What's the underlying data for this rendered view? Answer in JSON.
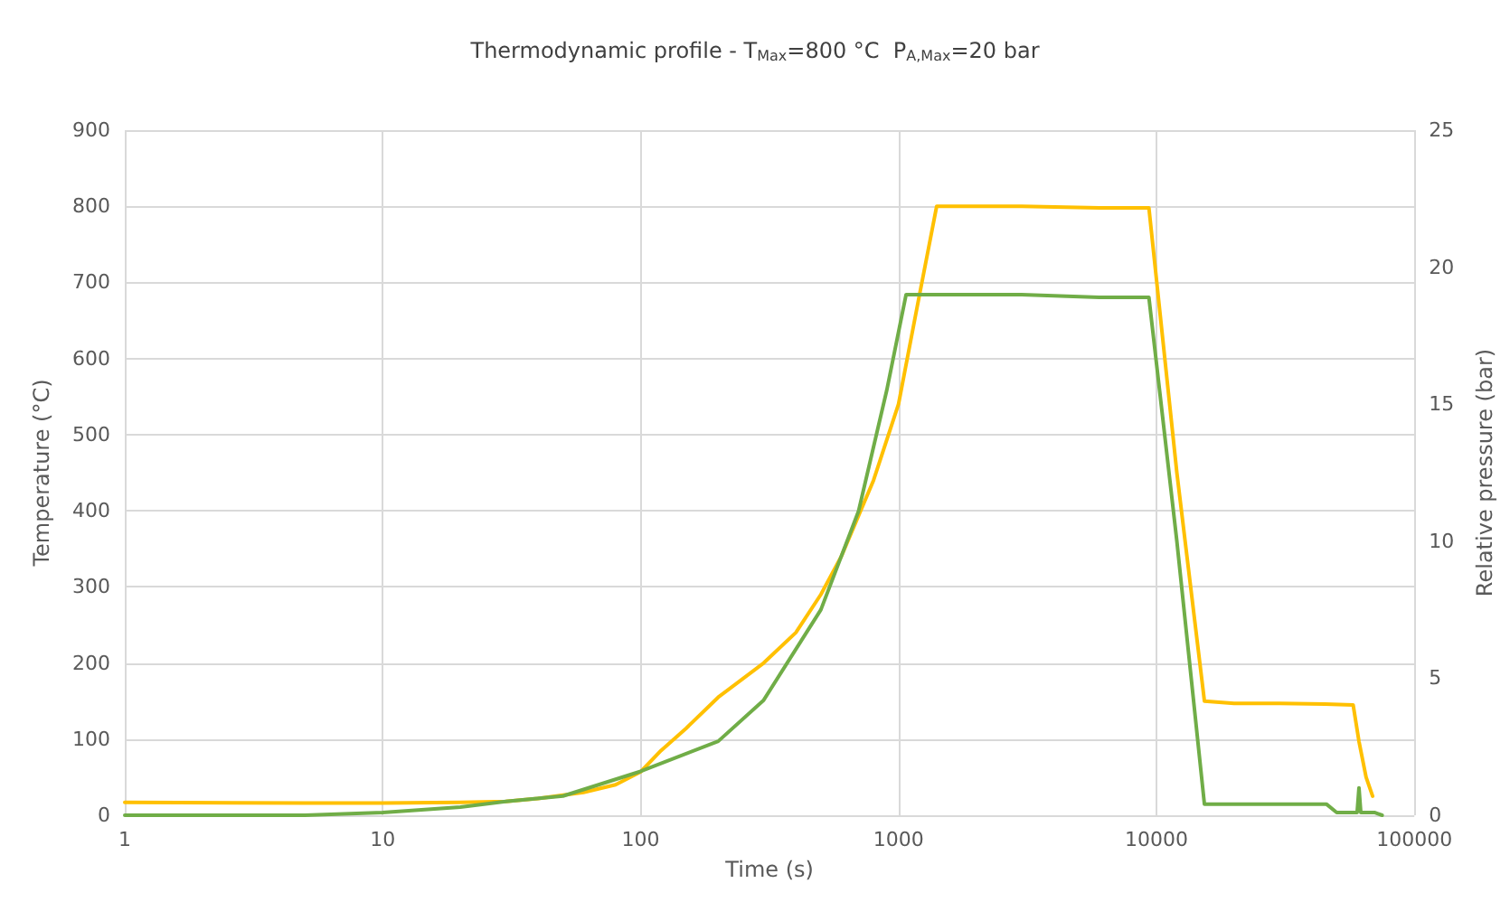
{
  "chart_data": {
    "type": "line",
    "title": "Thermodynamic profile - T$_{Max}$=800 °C  P$_{A,Max}$=20 bar",
    "xlabel": "Time (s)",
    "ylabel": "Temperature (°C)",
    "y2label": "Relative pressure (bar)",
    "log": "x",
    "grid": true,
    "marker": "none",
    "line_style": "solid",
    "xlim": [
      1,
      100000
    ],
    "xticks": [
      1,
      10,
      100,
      1000,
      10000,
      100000
    ],
    "ylim": [
      0,
      900
    ],
    "yticks": [
      0,
      100,
      200,
      300,
      400,
      500,
      600,
      700,
      800,
      900
    ],
    "y2lim": [
      0,
      25
    ],
    "y2ticks": [
      0,
      5,
      10,
      15,
      20,
      25
    ],
    "series": [
      {
        "color": "#ffc000",
        "x": [
          1,
          5,
          10,
          20,
          30,
          40,
          60,
          80,
          100,
          120,
          150,
          200,
          300,
          400,
          500,
          600,
          800,
          1000,
          1200,
          1406,
          3000,
          6000,
          9350,
          12000,
          15350,
          20000,
          30000,
          45000,
          57900,
          61000,
          65000,
          68900
        ],
        "values": [
          17,
          16,
          16,
          17,
          18,
          22,
          30,
          40,
          57,
          85,
          114,
          155,
          200,
          240,
          290,
          340,
          440,
          540,
          680,
          800,
          800,
          798,
          798,
          450,
          150,
          147,
          147,
          146,
          145,
          97,
          50,
          25
        ]
      },
      {
        "color": "#70ad47",
        "axis": "y2",
        "x": [
          1,
          5,
          10,
          20,
          30,
          50,
          100,
          200,
          300,
          500,
          700,
          900,
          1070,
          3000,
          6000,
          9350,
          12000,
          15350,
          20000,
          30000,
          45700,
          50000,
          60000,
          61000,
          62000,
          70000,
          75000
        ],
        "values": [
          0,
          0,
          0.1,
          0.3,
          0.5,
          0.7,
          1.6,
          2.7,
          4.2,
          7.5,
          11.1,
          15.5,
          19,
          19,
          18.9,
          18.9,
          10,
          0.4,
          0.4,
          0.4,
          0.4,
          0.1,
          0.1,
          1,
          0.1,
          0.1,
          0
        ]
      }
    ]
  }
}
